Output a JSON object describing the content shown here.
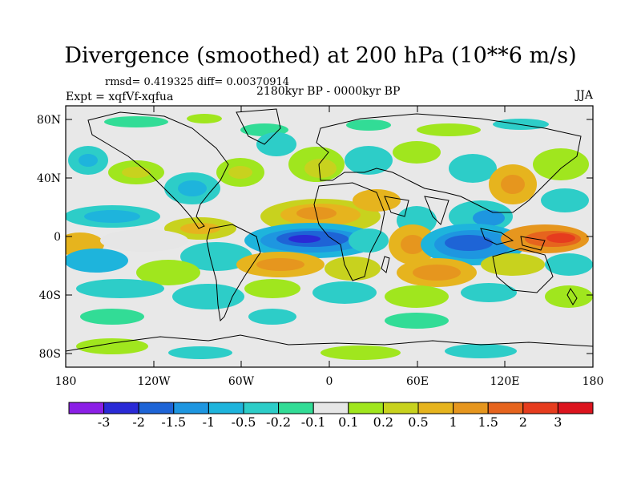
{
  "title": "Divergence (smoothed) at 200 hPa (10**6 m/s)",
  "stats": "rmsd= 0.419325 diff= 0.00370914",
  "experiment": "Expt = xqfVf-xqfua",
  "period": "2180kyr BP - 0000kyr BP",
  "season": "JJA",
  "map": {
    "y_ticks": [
      "80N",
      "40N",
      "0",
      "40S",
      "80S"
    ],
    "x_ticks": [
      "180",
      "120W",
      "60W",
      "0",
      "60E",
      "120E",
      "180"
    ]
  },
  "colorbar": {
    "labels": [
      "-3",
      "-2",
      "-1.5",
      "-1",
      "-0.5",
      "-0.2",
      "-0.1",
      "0.1",
      "0.2",
      "0.5",
      "1",
      "1.5",
      "2",
      "3"
    ],
    "colors": [
      "#8b1fe6",
      "#2a2ad6",
      "#1e64d6",
      "#1e96e0",
      "#1eb4dc",
      "#2dcdc8",
      "#32dc96",
      "#e6e6e6",
      "#a0e61e",
      "#c8d21e",
      "#e6b41e",
      "#e6961e",
      "#e6641e",
      "#e63c1e",
      "#dc141e"
    ]
  }
}
